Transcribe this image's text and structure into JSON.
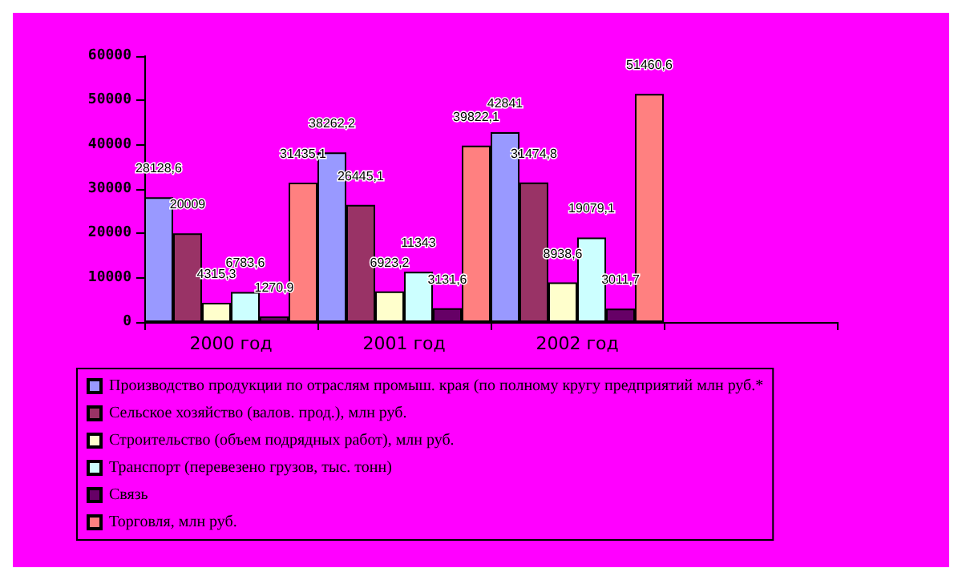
{
  "chart_data": {
    "type": "bar",
    "categories": [
      "2000 год",
      "2001 год",
      "2002 год",
      null
    ],
    "series": [
      {
        "name": "Производство продукции по отраслям промыш. края (по полному кругу предприятий млн руб.*",
        "color": "#9999ff",
        "values": [
          28128.6,
          38262.2,
          42841,
          null
        ],
        "value_labels": [
          "28128,6",
          "38262,2",
          "42841",
          null
        ]
      },
      {
        "name": "Сельское хозяйство (валов. прод.), млн руб.",
        "color": "#993366",
        "values": [
          20009,
          26445.1,
          31474.8,
          null
        ],
        "value_labels": [
          "20009",
          "26445,1",
          "31474,8",
          null
        ]
      },
      {
        "name": "Строительство (объем подрядных работ), млн руб.",
        "color": "#ffffcc",
        "values": [
          4315.3,
          6923.2,
          8938.6,
          null
        ],
        "value_labels": [
          "4315,3",
          "6923,2",
          "8938,6",
          null
        ]
      },
      {
        "name": "Транспорт (перевезено грузов, тыс. тонн)",
        "color": "#ccffff",
        "values": [
          6783.6,
          11343,
          19079.1,
          null
        ],
        "value_labels": [
          "6783,6",
          "11343",
          "19079,1",
          null
        ]
      },
      {
        "name": "Связь",
        "color": "#660066",
        "values": [
          1270.9,
          3131.6,
          3011.7,
          null
        ],
        "value_labels": [
          "1270,9",
          "3131,6",
          "3011,7",
          null
        ]
      },
      {
        "name": "Торговля, млн руб.",
        "color": "#ff8080",
        "values": [
          31435.1,
          39822.1,
          51460.6,
          null
        ],
        "value_labels": [
          "31435,1",
          "39822,1",
          "51460,6",
          null
        ]
      }
    ],
    "ylim": [
      0,
      60000
    ],
    "yticks": [
      0,
      10000,
      20000,
      30000,
      40000,
      50000,
      60000
    ],
    "grid": false,
    "legend": "bottom"
  }
}
